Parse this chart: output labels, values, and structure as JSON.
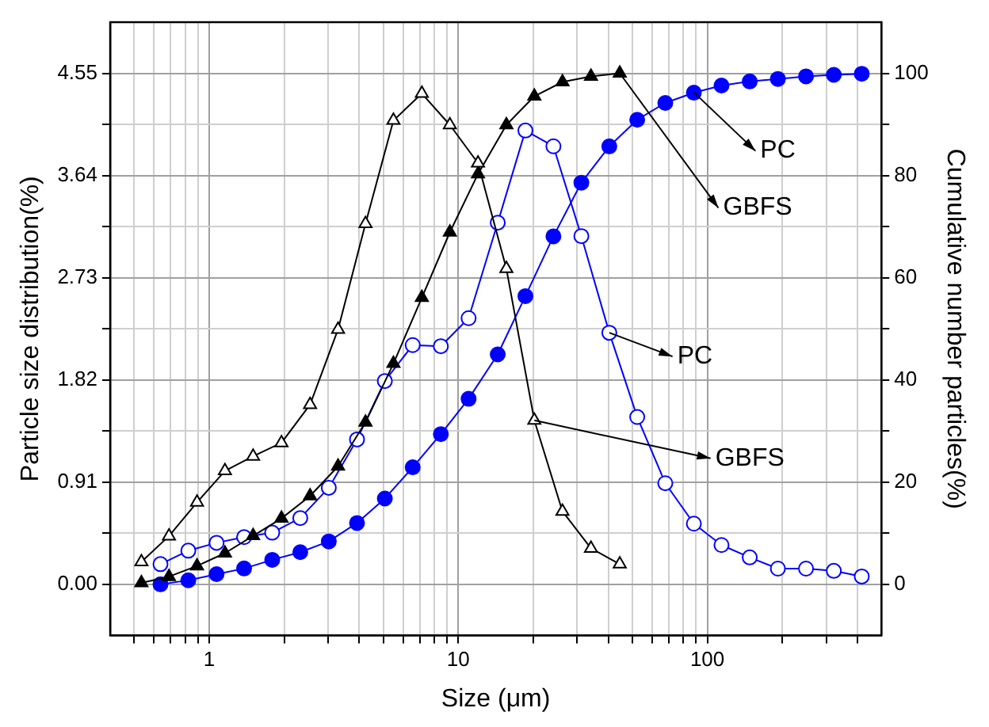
{
  "chart_data": {
    "type": "line",
    "xlabel": "Size (μm)",
    "ylabel": "Particle size distribution(%)",
    "y2label": "Cumulative number particles(%)",
    "log": "x",
    "grid": true,
    "legend": false,
    "line_style": "solid",
    "xlim": [
      0.4,
      500
    ],
    "xticks": [
      {
        "value": 0.5,
        "label": null
      },
      {
        "value": 0.6,
        "label": null
      },
      {
        "value": 0.7,
        "label": null
      },
      {
        "value": 0.8,
        "label": null
      },
      {
        "value": 0.9,
        "label": null
      },
      1,
      {
        "value": 2,
        "label": null
      },
      {
        "value": 3,
        "label": null
      },
      {
        "value": 4,
        "label": null
      },
      {
        "value": 5,
        "label": null
      },
      {
        "value": 6,
        "label": null
      },
      {
        "value": 7,
        "label": null
      },
      {
        "value": 8,
        "label": null
      },
      {
        "value": 9,
        "label": null
      },
      10,
      {
        "value": 20,
        "label": null
      },
      {
        "value": 30,
        "label": null
      },
      {
        "value": 40,
        "label": null
      },
      {
        "value": 50,
        "label": null
      },
      {
        "value": 60,
        "label": null
      },
      {
        "value": 70,
        "label": null
      },
      {
        "value": 80,
        "label": null
      },
      {
        "value": 90,
        "label": null
      },
      100,
      {
        "value": 200,
        "label": null
      },
      {
        "value": 300,
        "label": null
      },
      {
        "value": 400,
        "label": null
      }
    ],
    "ylim": [
      -0.455,
      5.005
    ],
    "yticks": [
      {
        "value": 0,
        "label": "0.00"
      },
      {
        "value": 0.455,
        "label": null
      },
      {
        "value": 0.91,
        "label": "0.91"
      },
      {
        "value": 1.365,
        "label": null
      },
      {
        "value": 1.82,
        "label": "1.82"
      },
      {
        "value": 2.275,
        "label": null
      },
      {
        "value": 2.73,
        "label": "2.73"
      },
      {
        "value": 3.185,
        "label": null
      },
      {
        "value": 3.64,
        "label": "3.64"
      },
      {
        "value": 4.095,
        "label": null
      },
      {
        "value": 4.55,
        "label": "4.55"
      }
    ],
    "y2lim": [
      -10,
      110
    ],
    "y2ticks": [
      0,
      {
        "value": 10,
        "label": null
      },
      20,
      {
        "value": 30,
        "label": null
      },
      40,
      {
        "value": 50,
        "label": null
      },
      60,
      {
        "value": 70,
        "label": null
      },
      80,
      {
        "value": 90,
        "label": null
      },
      100
    ],
    "series": [
      {
        "color": "#000000",
        "marker": "triangle",
        "axis": "y",
        "x": [
          0.534,
          0.689,
          0.893,
          1.156,
          1.5,
          1.95,
          2.54,
          3.29,
          4.24,
          5.49,
          7.14,
          9.25,
          12.0,
          15.6,
          20.2,
          26.2,
          34.1,
          44.5
        ],
        "values": [
          0.2,
          0.43,
          0.73,
          1.01,
          1.14,
          1.26,
          1.6,
          2.27,
          3.21,
          4.13,
          4.37,
          4.09,
          3.75,
          2.81,
          1.46,
          0.65,
          0.32,
          0.18
        ]
      },
      {
        "color": "#000000",
        "marker": "triangle",
        "axis": "y2",
        "x": [
          0.534,
          0.689,
          0.893,
          1.156,
          1.5,
          1.95,
          2.54,
          3.29,
          4.24,
          5.49,
          7.14,
          9.25,
          12.0,
          15.6,
          20.2,
          26.2,
          34.1,
          44.5
        ],
        "values": [
          0.3,
          1.5,
          3.6,
          6.1,
          9.5,
          12.9,
          17.3,
          23.1,
          31.7,
          43.2,
          56.1,
          68.9,
          80.3,
          89.9,
          95.5,
          98.3,
          99.4,
          100
        ]
      },
      {
        "color": "#0000ff",
        "marker": "circle",
        "axis": "y",
        "x": [
          0.637,
          0.824,
          1.07,
          1.38,
          1.79,
          2.32,
          3.02,
          3.92,
          5.07,
          6.56,
          8.51,
          11.0,
          14.4,
          18.6,
          24.1,
          31.2,
          40.4,
          52.3,
          67.8,
          88.3,
          114,
          148,
          192,
          249,
          322,
          417
        ],
        "values": [
          0.18,
          0.3,
          0.37,
          0.42,
          0.46,
          0.59,
          0.86,
          1.29,
          1.81,
          2.13,
          2.12,
          2.37,
          3.22,
          4.04,
          3.9,
          3.1,
          2.24,
          1.49,
          0.9,
          0.54,
          0.35,
          0.24,
          0.14,
          0.14,
          0.12,
          0.07
        ]
      },
      {
        "color": "#0000ff",
        "marker": "circle",
        "axis": "y2",
        "x": [
          0.637,
          0.824,
          1.07,
          1.38,
          1.79,
          2.32,
          3.02,
          3.92,
          5.07,
          6.56,
          8.51,
          11.0,
          14.4,
          18.6,
          24.1,
          31.2,
          40.4,
          52.3,
          67.8,
          88.3,
          114,
          148,
          192,
          249,
          322,
          417
        ],
        "values": [
          0,
          0.8,
          2.0,
          3.1,
          4.8,
          6.3,
          8.4,
          12.0,
          16.8,
          22.9,
          29.4,
          36.3,
          45.0,
          56.4,
          68.1,
          78.6,
          85.7,
          90.9,
          94.2,
          96.2,
          97.6,
          98.4,
          98.9,
          99.4,
          99.7,
          99.9
        ]
      }
    ],
    "annotations": [
      {
        "text": "PC",
        "x": 88.3,
        "y": 4.38
      },
      {
        "text": "GBFS",
        "x": 44.5,
        "y": 4.55
      },
      {
        "text": "PC",
        "x": 40.4,
        "y": 2.24
      },
      {
        "text": "GBFS",
        "x": 20.2,
        "y": 1.46
      }
    ]
  }
}
